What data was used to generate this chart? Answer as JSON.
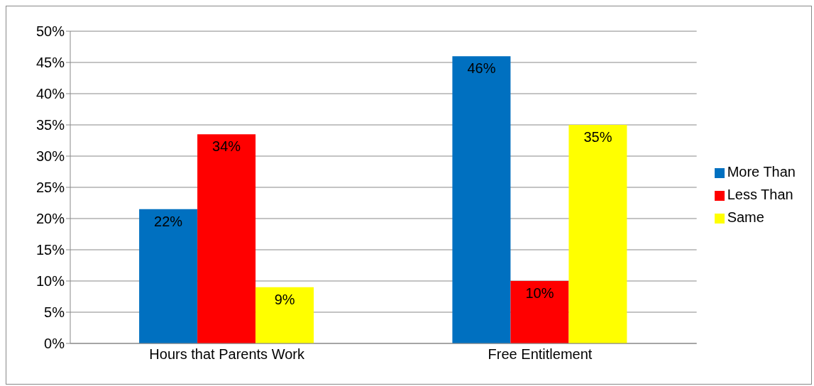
{
  "chart_data": {
    "type": "bar",
    "categories": [
      "Hours that Parents Work",
      "Free Entitlement"
    ],
    "series": [
      {
        "name": "More Than",
        "color": "#0070c0",
        "values": [
          21.5,
          46
        ],
        "value_labels": [
          "22%",
          "46%"
        ]
      },
      {
        "name": "Less Than",
        "color": "#ff0000",
        "values": [
          33.5,
          10
        ],
        "value_labels": [
          "34%",
          "10%"
        ]
      },
      {
        "name": "Same",
        "color": "#ffff00",
        "values": [
          9,
          35
        ],
        "value_labels": [
          "9%",
          "35%"
        ]
      }
    ],
    "ylim": [
      0,
      50
    ],
    "yticks": [
      {
        "value": 0,
        "label": "0%"
      },
      {
        "value": 5,
        "label": "5%"
      },
      {
        "value": 10,
        "label": "10%"
      },
      {
        "value": 15,
        "label": "15%"
      },
      {
        "value": 20,
        "label": "20%"
      },
      {
        "value": 25,
        "label": "25%"
      },
      {
        "value": 30,
        "label": "30%"
      },
      {
        "value": 35,
        "label": "35%"
      },
      {
        "value": 40,
        "label": "40%"
      },
      {
        "value": 45,
        "label": "45%"
      },
      {
        "value": 50,
        "label": "50%"
      }
    ],
    "grid": "y",
    "legend": "right"
  }
}
